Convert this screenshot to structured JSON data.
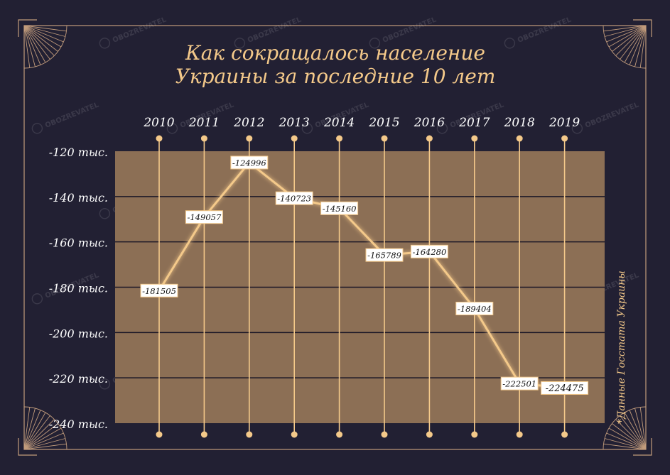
{
  "chart_data": {
    "type": "line",
    "title_lines": [
      "Как сокращалось население",
      "Украины за последние 10 лет"
    ],
    "x": [
      "2010",
      "2011",
      "2012",
      "2013",
      "2014",
      "2015",
      "2016",
      "2017",
      "2018",
      "2019"
    ],
    "values": [
      -181505,
      -149057,
      -124996,
      -140723,
      -145160,
      -165789,
      -164280,
      -189404,
      -222501,
      -224475
    ],
    "value_labels": [
      "-181505",
      "-149057",
      "-124996",
      "-140723",
      "-145160",
      "-165789",
      "-164280",
      "-189404",
      "-222501",
      "-224475"
    ],
    "y_ticks": [
      -120000,
      -140000,
      -160000,
      -180000,
      -200000,
      -220000,
      -240000
    ],
    "y_tick_labels": [
      "-120 тыс.",
      "-140 тыс.",
      "-160 тыс.",
      "-180 тыс.",
      "-200 тыс.",
      "-220 тыс.",
      "-240 тыс."
    ],
    "ylim": [
      -240000,
      -120000
    ],
    "source_note": "*Данные Госстата Украины",
    "watermark": "OBOZREVATEL",
    "grid": true,
    "colors": {
      "background": "#222033",
      "plot_area": "#8c6f55",
      "accent": "#f4c98a",
      "frame": "#c29c7c",
      "grid": "#1a1626",
      "label_box": "#ffffff",
      "label_text": "#111111"
    }
  }
}
